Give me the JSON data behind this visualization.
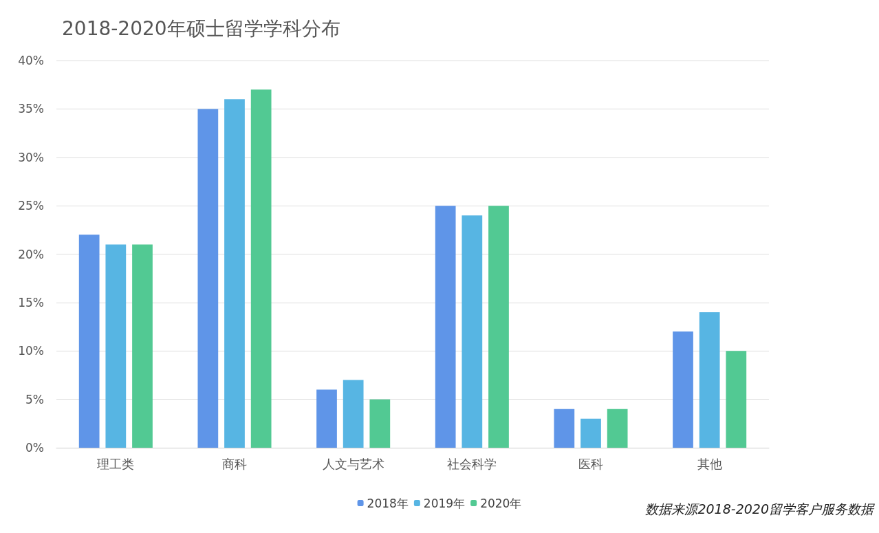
{
  "chart_data": {
    "type": "bar",
    "title": "2018-2020年硕士留学学科分布",
    "categories": [
      "理工类",
      "商科",
      "人文与艺术",
      "社会科学",
      "医科",
      "其他"
    ],
    "series": [
      {
        "name": "2018年",
        "color": "#5f95e8",
        "values": [
          22,
          35,
          6,
          25,
          4,
          12
        ]
      },
      {
        "name": "2019年",
        "color": "#57b5e3",
        "values": [
          21,
          36,
          7,
          24,
          3,
          14
        ]
      },
      {
        "name": "2020年",
        "color": "#52c993",
        "values": [
          21,
          37,
          5,
          25,
          4,
          10
        ]
      }
    ],
    "ylim": [
      0,
      40
    ],
    "yticks": [
      {
        "value": 0,
        "label": "0%"
      },
      {
        "value": 5,
        "label": "5%"
      },
      {
        "value": 10,
        "label": "10%"
      },
      {
        "value": 15,
        "label": "15%"
      },
      {
        "value": 20,
        "label": "20%"
      },
      {
        "value": 25,
        "label": "25%"
      },
      {
        "value": 30,
        "label": "30%"
      },
      {
        "value": 35,
        "label": "35%"
      },
      {
        "value": 40,
        "label": "40%"
      }
    ],
    "grid": "y",
    "legend": "bottom",
    "annotations": [
      "数据来源2018-2020留学客户服务数据"
    ]
  }
}
